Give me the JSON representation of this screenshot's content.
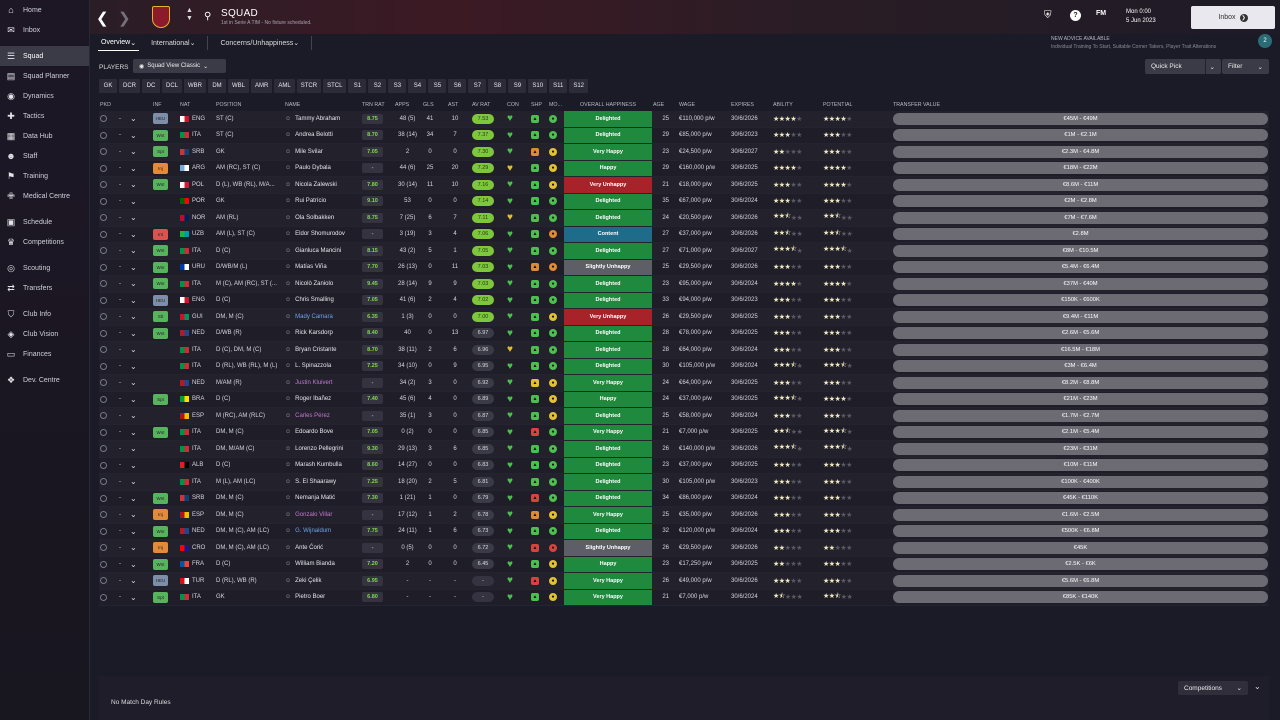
{
  "nav": [
    {
      "label": "Home",
      "icon": "home-icon",
      "glyph": "⌂",
      "active": false,
      "gap": false
    },
    {
      "label": "Inbox",
      "icon": "inbox-icon",
      "glyph": "✉",
      "active": false,
      "gap": false
    },
    {
      "label": "Squad",
      "icon": "squad-icon",
      "glyph": "☰",
      "active": true,
      "gap": true
    },
    {
      "label": "Squad Planner",
      "icon": "squad-planner-icon",
      "glyph": "▤",
      "active": false,
      "gap": false
    },
    {
      "label": "Dynamics",
      "icon": "dynamics-icon",
      "glyph": "◉",
      "active": false,
      "gap": false
    },
    {
      "label": "Tactics",
      "icon": "tactics-icon",
      "glyph": "✚",
      "active": false,
      "gap": false
    },
    {
      "label": "Data Hub",
      "icon": "data-hub-icon",
      "glyph": "▦",
      "active": false,
      "gap": false
    },
    {
      "label": "Staff",
      "icon": "staff-icon",
      "glyph": "☻",
      "active": false,
      "gap": false
    },
    {
      "label": "Training",
      "icon": "training-icon",
      "glyph": "⚑",
      "active": false,
      "gap": false
    },
    {
      "label": "Medical Centre",
      "icon": "medical-centre-icon",
      "glyph": "✙",
      "active": false,
      "gap": false
    },
    {
      "label": "Schedule",
      "icon": "schedule-icon",
      "glyph": "▣",
      "active": false,
      "gap": true
    },
    {
      "label": "Competitions",
      "icon": "competitions-icon",
      "glyph": "♛",
      "active": false,
      "gap": false
    },
    {
      "label": "Scouting",
      "icon": "scouting-icon",
      "glyph": "◎",
      "active": false,
      "gap": true
    },
    {
      "label": "Transfers",
      "icon": "transfers-icon",
      "glyph": "⇄",
      "active": false,
      "gap": false
    },
    {
      "label": "Club Info",
      "icon": "club-info-icon",
      "glyph": "⛉",
      "active": false,
      "gap": true
    },
    {
      "label": "Club Vision",
      "icon": "club-vision-icon",
      "glyph": "◈",
      "active": false,
      "gap": false
    },
    {
      "label": "Finances",
      "icon": "finances-icon",
      "glyph": "▭",
      "active": false,
      "gap": false
    },
    {
      "label": "Dev. Centre",
      "icon": "dev-centre-icon",
      "glyph": "❖",
      "active": false,
      "gap": true
    }
  ],
  "header": {
    "title": "SQUAD",
    "subtitle": "1st in Serie A TIM - No fixture scheduled.",
    "date_line1": "Mon 0:00",
    "date_line2": "5 Jun 2023",
    "fm_label": "FM",
    "inbox_label": "Inbox"
  },
  "tabs": [
    {
      "label": "Overview"
    },
    {
      "label": "International"
    },
    {
      "label": "Concerns/Unhappiness"
    }
  ],
  "advice": {
    "title": "NEW ADVICE AVAILABLE",
    "body": "Individual Training To Start, Suitable Corner Takers, Player Trait Alterations",
    "count": "2"
  },
  "toolbar": {
    "players_label": "PLAYERS",
    "view_label": "Squad View Classic",
    "quick_pick": "Quick Pick",
    "filter": "Filter"
  },
  "positions": [
    "GK",
    "DCR",
    "DC",
    "DCL",
    "WBR",
    "DM",
    "WBL",
    "AMR",
    "AML",
    "STCR",
    "STCL",
    "S1",
    "S2",
    "S3",
    "S4",
    "S5",
    "S6",
    "S7",
    "S8",
    "S9",
    "S10",
    "S11",
    "S12"
  ],
  "columns": {
    "pkd": "PKD",
    "inf": "INF",
    "nat": "NAT",
    "position": "POSITION",
    "name": "NAME",
    "trn": "TRN RAT",
    "apps": "APPS",
    "gls": "GLS",
    "ast": "AST",
    "avr": "AV RAT",
    "con": "CON",
    "shp": "SHP",
    "mo": "MO...",
    "hap": "OVERALL HAPPINESS",
    "age": "AGE",
    "wage": "WAGE",
    "exp": "EXPIRES",
    "abl": "ABILITY",
    "pot": "POTENTIAL",
    "tv": "TRANSFER VALUE"
  },
  "colors": {
    "delighted": "#1f8a3e",
    "very_happy": "#1f8a3e",
    "happy": "#1f8a3e",
    "content": "#1e6b8a",
    "slightly_unhappy": "#5e5e66",
    "very_unhappy": "#a82329",
    "green": "#4cc04e",
    "yellow": "#e2c034",
    "orange": "#e08a33",
    "red": "#d8433d"
  },
  "players": [
    {
      "inf": "HEU",
      "nat": "ENG",
      "pos": "ST (C)",
      "name": "Tammy Abraham",
      "nc": "n",
      "trn": "8.75",
      "apps": "48 (5)",
      "gls": "41",
      "ast": "10",
      "avr": "7.53",
      "con": "g",
      "shp": "g",
      "mo": "g",
      "hap": "Delighted",
      "hk": "delighted",
      "age": "25",
      "wage": "€110,000 p/w",
      "exp": "30/6/2026",
      "ab": 4,
      "ah": 0,
      "po": 4,
      "ph": 0,
      "tv": "€45M - €49M"
    },
    {
      "inf": "Wnt",
      "nat": "ITA",
      "pos": "ST (C)",
      "name": "Andrea Belotti",
      "nc": "n",
      "trn": "8.70",
      "apps": "38 (14)",
      "gls": "34",
      "ast": "7",
      "avr": "7.37",
      "con": "g",
      "shp": "g",
      "mo": "g",
      "hap": "Delighted",
      "hk": "delighted",
      "age": "29",
      "wage": "€85,000 p/w",
      "exp": "30/6/2023",
      "ab": 3,
      "ah": 0,
      "po": 3,
      "ph": 0,
      "tv": "€1M - €2.1M"
    },
    {
      "inf": "Spt",
      "nat": "SRB",
      "pos": "GK",
      "name": "Mile Svilar",
      "nc": "n",
      "trn": "7.05",
      "apps": "2",
      "gls": "0",
      "ast": "0",
      "avr": "7.30",
      "con": "g",
      "shp": "o",
      "mo": "y",
      "hap": "Very Happy",
      "hk": "very_happy",
      "age": "23",
      "wage": "€24,500 p/w",
      "exp": "30/6/2027",
      "ab": 2,
      "ah": 0,
      "po": 3,
      "ph": 0,
      "tv": "€2.3M - €4.8M"
    },
    {
      "inf": "Inj",
      "nat": "ARG",
      "pos": "AM (RC), ST (C)",
      "name": "Paulo Dybala",
      "nc": "n",
      "trn": "-",
      "apps": "44 (6)",
      "gls": "25",
      "ast": "20",
      "avr": "7.29",
      "con": "y",
      "shp": "g",
      "mo": "y",
      "hap": "Happy",
      "hk": "happy",
      "age": "29",
      "wage": "€160,000 p/w",
      "exp": "30/6/2025",
      "ab": 4,
      "ah": 0,
      "po": 4,
      "ph": 0,
      "tv": "€18M - €22M"
    },
    {
      "inf": "Wnt",
      "nat": "POL",
      "pos": "D (L), WB (RL), M/A...",
      "name": "Nicola Zalewski",
      "nc": "n",
      "trn": "7.80",
      "apps": "30 (14)",
      "gls": "11",
      "ast": "10",
      "avr": "7.16",
      "con": "g",
      "shp": "g",
      "mo": "y",
      "hap": "Very Unhappy",
      "hk": "very_unhappy",
      "age": "21",
      "wage": "€18,000 p/w",
      "exp": "30/6/2025",
      "ab": 3,
      "ah": 0,
      "po": 4,
      "ph": 0,
      "tv": "€8.6M - €11M"
    },
    {
      "inf": "",
      "nat": "POR",
      "pos": "GK",
      "name": "Rui Patrício",
      "nc": "n",
      "trn": "9.10",
      "apps": "53",
      "gls": "0",
      "ast": "0",
      "avr": "7.14",
      "con": "g",
      "shp": "g",
      "mo": "g",
      "hap": "Delighted",
      "hk": "delighted",
      "age": "35",
      "wage": "€67,000 p/w",
      "exp": "30/6/2024",
      "ab": 3,
      "ah": 0,
      "po": 3,
      "ph": 0,
      "tv": "€2M - €2.8M"
    },
    {
      "inf": "",
      "nat": "NOR",
      "pos": "AM (RL)",
      "name": "Ola Solbakken",
      "nc": "n",
      "trn": "8.75",
      "apps": "7 (25)",
      "gls": "6",
      "ast": "7",
      "avr": "7.11",
      "con": "y",
      "shp": "g",
      "mo": "g",
      "hap": "Delighted",
      "hk": "delighted",
      "age": "24",
      "wage": "€20,500 p/w",
      "exp": "30/6/2026",
      "ab": 2,
      "ah": 1,
      "po": 2,
      "ph": 1,
      "tv": "€7M - €7.6M"
    },
    {
      "inf": "Int",
      "nat": "UZB",
      "pos": "AM (L), ST (C)",
      "name": "Eldor Shomurodov",
      "nc": "n",
      "trn": "-",
      "apps": "3 (19)",
      "gls": "3",
      "ast": "4",
      "avr": "7.06",
      "con": "g",
      "shp": "g",
      "mo": "o",
      "hap": "Content",
      "hk": "content",
      "age": "27",
      "wage": "€37,000 p/w",
      "exp": "30/6/2026",
      "ab": 2,
      "ah": 1,
      "po": 2,
      "ph": 1,
      "tv": "€2.8M"
    },
    {
      "inf": "Wnt",
      "nat": "ITA",
      "pos": "D (C)",
      "name": "Gianluca Mancini",
      "nc": "n",
      "trn": "8.15",
      "apps": "43 (2)",
      "gls": "5",
      "ast": "1",
      "avr": "7.05",
      "con": "g",
      "shp": "g",
      "mo": "g",
      "hap": "Delighted",
      "hk": "delighted",
      "age": "27",
      "wage": "€71,000 p/w",
      "exp": "30/6/2027",
      "ab": 3,
      "ah": 1,
      "po": 3,
      "ph": 1,
      "tv": "€8M - €10.5M"
    },
    {
      "inf": "Wnt",
      "nat": "URU",
      "pos": "D/WB/M (L)",
      "name": "Matías Viña",
      "nc": "n",
      "trn": "7.70",
      "apps": "26 (13)",
      "gls": "0",
      "ast": "11",
      "avr": "7.03",
      "con": "g",
      "shp": "o",
      "mo": "o",
      "hap": "Slightly Unhappy",
      "hk": "slightly_unhappy",
      "age": "25",
      "wage": "€29,500 p/w",
      "exp": "30/6/2026",
      "ab": 3,
      "ah": 0,
      "po": 3,
      "ph": 0,
      "tv": "€5.4M - €6.4M"
    },
    {
      "inf": "Wnt",
      "nat": "ITA",
      "pos": "M (C), AM (RC), ST (...",
      "name": "Nicolò Zaniolo",
      "nc": "n",
      "trn": "9.45",
      "apps": "28 (14)",
      "gls": "9",
      "ast": "9",
      "avr": "7.03",
      "con": "g",
      "shp": "g",
      "mo": "g",
      "hap": "Delighted",
      "hk": "delighted",
      "age": "23",
      "wage": "€95,000 p/w",
      "exp": "30/6/2024",
      "ab": 4,
      "ah": 0,
      "po": 4,
      "ph": 0,
      "tv": "€37M - €40M"
    },
    {
      "inf": "HEU",
      "nat": "ENG",
      "pos": "D (C)",
      "name": "Chris Smalling",
      "nc": "n",
      "trn": "7.05",
      "apps": "41 (6)",
      "gls": "2",
      "ast": "4",
      "avr": "7.02",
      "con": "g",
      "shp": "g",
      "mo": "g",
      "hap": "Delighted",
      "hk": "delighted",
      "age": "33",
      "wage": "€94,000 p/w",
      "exp": "30/6/2023",
      "ab": 3,
      "ah": 0,
      "po": 3,
      "ph": 0,
      "tv": "€150K - €600K"
    },
    {
      "inf": "Slt",
      "nat": "GUI",
      "pos": "DM, M (C)",
      "name": "Mady Camara",
      "nc": "b",
      "trn": "6.35",
      "apps": "1 (3)",
      "gls": "0",
      "ast": "0",
      "avr": "7.00",
      "con": "g",
      "shp": "g",
      "mo": "y",
      "hap": "Very Unhappy",
      "hk": "very_unhappy",
      "age": "26",
      "wage": "€29,500 p/w",
      "exp": "30/6/2025",
      "ab": 3,
      "ah": 0,
      "po": 3,
      "ph": 0,
      "tv": "€9.4M - €11M"
    },
    {
      "inf": "Wnt",
      "nat": "NED",
      "pos": "D/WB (R)",
      "name": "Rick Karsdorp",
      "nc": "n",
      "trn": "8.40",
      "apps": "40",
      "gls": "0",
      "ast": "13",
      "avr": "6.97",
      "con": "g",
      "shp": "g",
      "mo": "g",
      "hap": "Delighted",
      "hk": "delighted",
      "age": "28",
      "wage": "€78,000 p/w",
      "exp": "30/6/2025",
      "ab": 3,
      "ah": 0,
      "po": 3,
      "ph": 0,
      "tv": "€2.6M - €5.6M"
    },
    {
      "inf": "",
      "nat": "ITA",
      "pos": "D (C), DM, M (C)",
      "name": "Bryan Cristante",
      "nc": "n",
      "trn": "8.70",
      "apps": "38 (11)",
      "gls": "2",
      "ast": "6",
      "avr": "6.96",
      "con": "y",
      "shp": "g",
      "mo": "g",
      "hap": "Delighted",
      "hk": "delighted",
      "age": "28",
      "wage": "€64,000 p/w",
      "exp": "30/6/2024",
      "ab": 3,
      "ah": 0,
      "po": 3,
      "ph": 0,
      "tv": "€16.5M - €18M"
    },
    {
      "inf": "",
      "nat": "ITA",
      "pos": "D (RL), WB (RL), M (L)",
      "name": "L. Spinazzola",
      "nc": "n",
      "trn": "7.25",
      "apps": "34 (10)",
      "gls": "0",
      "ast": "9",
      "avr": "6.95",
      "con": "g",
      "shp": "g",
      "mo": "g",
      "hap": "Delighted",
      "hk": "delighted",
      "age": "30",
      "wage": "€105,000 p/w",
      "exp": "30/6/2024",
      "ab": 3,
      "ah": 1,
      "po": 3,
      "ph": 1,
      "tv": "€3M - €6.4M"
    },
    {
      "inf": "",
      "nat": "NED",
      "pos": "M/AM (R)",
      "name": "Justin Kluivert",
      "nc": "p",
      "trn": "-",
      "apps": "34 (2)",
      "gls": "3",
      "ast": "0",
      "avr": "6.92",
      "con": "g",
      "shp": "y",
      "mo": "y",
      "hap": "Very Happy",
      "hk": "very_happy",
      "age": "24",
      "wage": "€64,000 p/w",
      "exp": "30/6/2025",
      "ab": 3,
      "ah": 0,
      "po": 3,
      "ph": 0,
      "tv": "€8.2M - €8.8M"
    },
    {
      "inf": "Spt",
      "nat": "BRA",
      "pos": "D (C)",
      "name": "Roger Ibañez",
      "nc": "n",
      "trn": "7.40",
      "apps": "45 (6)",
      "gls": "4",
      "ast": "0",
      "avr": "6.89",
      "con": "g",
      "shp": "g",
      "mo": "y",
      "hap": "Happy",
      "hk": "happy",
      "age": "24",
      "wage": "€37,000 p/w",
      "exp": "30/6/2025",
      "ab": 3,
      "ah": 1,
      "po": 4,
      "ph": 0,
      "tv": "€21M - €23M"
    },
    {
      "inf": "",
      "nat": "ESP",
      "pos": "M (RC), AM (RLC)",
      "name": "Carles Pérez",
      "nc": "p",
      "trn": "-",
      "apps": "35 (1)",
      "gls": "3",
      "ast": "0",
      "avr": "6.87",
      "con": "g",
      "shp": "g",
      "mo": "y",
      "hap": "Delighted",
      "hk": "delighted",
      "age": "25",
      "wage": "€58,000 p/w",
      "exp": "30/6/2024",
      "ab": 3,
      "ah": 0,
      "po": 3,
      "ph": 0,
      "tv": "€1.7M - €2.7M"
    },
    {
      "inf": "Wnt",
      "nat": "ITA",
      "pos": "DM, M (C)",
      "name": "Edoardo Bove",
      "nc": "n",
      "trn": "7.05",
      "apps": "0 (2)",
      "gls": "0",
      "ast": "0",
      "avr": "6.85",
      "con": "g",
      "shp": "r",
      "mo": "g",
      "hap": "Very Happy",
      "hk": "very_happy",
      "age": "21",
      "wage": "€7,000 p/w",
      "exp": "30/6/2025",
      "ab": 2,
      "ah": 1,
      "po": 3,
      "ph": 1,
      "tv": "€2.1M - €5.4M"
    },
    {
      "inf": "",
      "nat": "ITA",
      "pos": "DM, M/AM (C)",
      "name": "Lorenzo Pellegrini",
      "nc": "n",
      "trn": "9.30",
      "apps": "29 (13)",
      "gls": "3",
      "ast": "6",
      "avr": "6.85",
      "con": "g",
      "shp": "g",
      "mo": "g",
      "hap": "Delighted",
      "hk": "delighted",
      "age": "26",
      "wage": "€140,000 p/w",
      "exp": "30/6/2026",
      "ab": 3,
      "ah": 1,
      "po": 3,
      "ph": 1,
      "tv": "€23M - €31M"
    },
    {
      "inf": "",
      "nat": "ALB",
      "pos": "D (C)",
      "name": "Marash Kumbulla",
      "nc": "n",
      "trn": "8.60",
      "apps": "14 (27)",
      "gls": "0",
      "ast": "0",
      "avr": "6.83",
      "con": "g",
      "shp": "g",
      "mo": "g",
      "hap": "Delighted",
      "hk": "delighted",
      "age": "23",
      "wage": "€37,000 p/w",
      "exp": "30/6/2025",
      "ab": 3,
      "ah": 0,
      "po": 3,
      "ph": 0,
      "tv": "€10M - €11M"
    },
    {
      "inf": "",
      "nat": "ITA",
      "pos": "M (L), AM (LC)",
      "name": "S. El Shaarawy",
      "nc": "n",
      "trn": "7.25",
      "apps": "18 (20)",
      "gls": "2",
      "ast": "5",
      "avr": "6.81",
      "con": "g",
      "shp": "g",
      "mo": "g",
      "hap": "Delighted",
      "hk": "delighted",
      "age": "30",
      "wage": "€105,000 p/w",
      "exp": "30/6/2023",
      "ab": 3,
      "ah": 0,
      "po": 3,
      "ph": 0,
      "tv": "€100K - €400K"
    },
    {
      "inf": "Wnt",
      "nat": "SRB",
      "pos": "DM, M (C)",
      "name": "Nemanja Matić",
      "nc": "n",
      "trn": "7.30",
      "apps": "1 (21)",
      "gls": "1",
      "ast": "0",
      "avr": "6.79",
      "con": "g",
      "shp": "r",
      "mo": "g",
      "hap": "Delighted",
      "hk": "delighted",
      "age": "34",
      "wage": "€86,000 p/w",
      "exp": "30/6/2024",
      "ab": 3,
      "ah": 0,
      "po": 3,
      "ph": 0,
      "tv": "€45K - €110K"
    },
    {
      "inf": "Inj",
      "nat": "ESP",
      "pos": "DM, M (C)",
      "name": "Gonzalo Villar",
      "nc": "p",
      "trn": "-",
      "apps": "17 (12)",
      "gls": "1",
      "ast": "2",
      "avr": "6.78",
      "con": "g",
      "shp": "o",
      "mo": "y",
      "hap": "Very Happy",
      "hk": "very_happy",
      "age": "25",
      "wage": "€35,000 p/w",
      "exp": "30/6/2026",
      "ab": 3,
      "ah": 0,
      "po": 3,
      "ph": 0,
      "tv": "€1.6M - €2.5M"
    },
    {
      "inf": "Wnt",
      "nat": "NED",
      "pos": "DM, M (C), AM (LC)",
      "name": "G. Wijnaldum",
      "nc": "b",
      "trn": "7.75",
      "apps": "24 (11)",
      "gls": "1",
      "ast": "6",
      "avr": "6.73",
      "con": "g",
      "shp": "g",
      "mo": "g",
      "hap": "Delighted",
      "hk": "delighted",
      "age": "32",
      "wage": "€120,000 p/w",
      "exp": "30/6/2024",
      "ab": 3,
      "ah": 0,
      "po": 3,
      "ph": 0,
      "tv": "€500K - €6.8M"
    },
    {
      "inf": "Inj",
      "nat": "CRO",
      "pos": "DM, M (C), AM (LC)",
      "name": "Ante Ćorić",
      "nc": "n",
      "trn": "-",
      "apps": "0 (5)",
      "gls": "0",
      "ast": "0",
      "avr": "6.72",
      "con": "g",
      "shp": "r",
      "mo": "r",
      "hap": "Slightly Unhappy",
      "hk": "slightly_unhappy",
      "age": "26",
      "wage": "€29,500 p/w",
      "exp": "30/6/2026",
      "ab": 2,
      "ah": 0,
      "po": 2,
      "ph": 0,
      "tv": "€45K"
    },
    {
      "inf": "Wnt",
      "nat": "FRA",
      "pos": "D (C)",
      "name": "William Bianda",
      "nc": "n",
      "trn": "7.20",
      "apps": "2",
      "gls": "0",
      "ast": "0",
      "avr": "6.45",
      "con": "g",
      "shp": "g",
      "mo": "y",
      "hap": "Happy",
      "hk": "happy",
      "age": "23",
      "wage": "€17,250 p/w",
      "exp": "30/6/2025",
      "ab": 2,
      "ah": 0,
      "po": 3,
      "ph": 0,
      "tv": "€2.5K - €6K"
    },
    {
      "inf": "HEU",
      "nat": "TUR",
      "pos": "D (RL), WB (R)",
      "name": "Zeki Çelik",
      "nc": "n",
      "trn": "6.95",
      "apps": "-",
      "gls": "-",
      "ast": "-",
      "avr": "-",
      "con": "g",
      "shp": "r",
      "mo": "y",
      "hap": "Very Happy",
      "hk": "very_happy",
      "age": "26",
      "wage": "€49,000 p/w",
      "exp": "30/6/2026",
      "ab": 3,
      "ah": 0,
      "po": 3,
      "ph": 0,
      "tv": "€5.6M - €6.8M"
    },
    {
      "inf": "Spt",
      "nat": "ITA",
      "pos": "GK",
      "name": "Pietro Boer",
      "nc": "n",
      "trn": "6.80",
      "apps": "-",
      "gls": "-",
      "ast": "-",
      "avr": "-",
      "con": "g",
      "shp": "g",
      "mo": "y",
      "hap": "Very Happy",
      "hk": "very_happy",
      "age": "21",
      "wage": "€7,000 p/w",
      "exp": "30/6/2024",
      "ab": 1,
      "ah": 1,
      "po": 2,
      "ph": 1,
      "tv": "€85K - €140K"
    }
  ],
  "footer": {
    "match_day": "No Match Day Rules",
    "competitions": "Competitions"
  }
}
